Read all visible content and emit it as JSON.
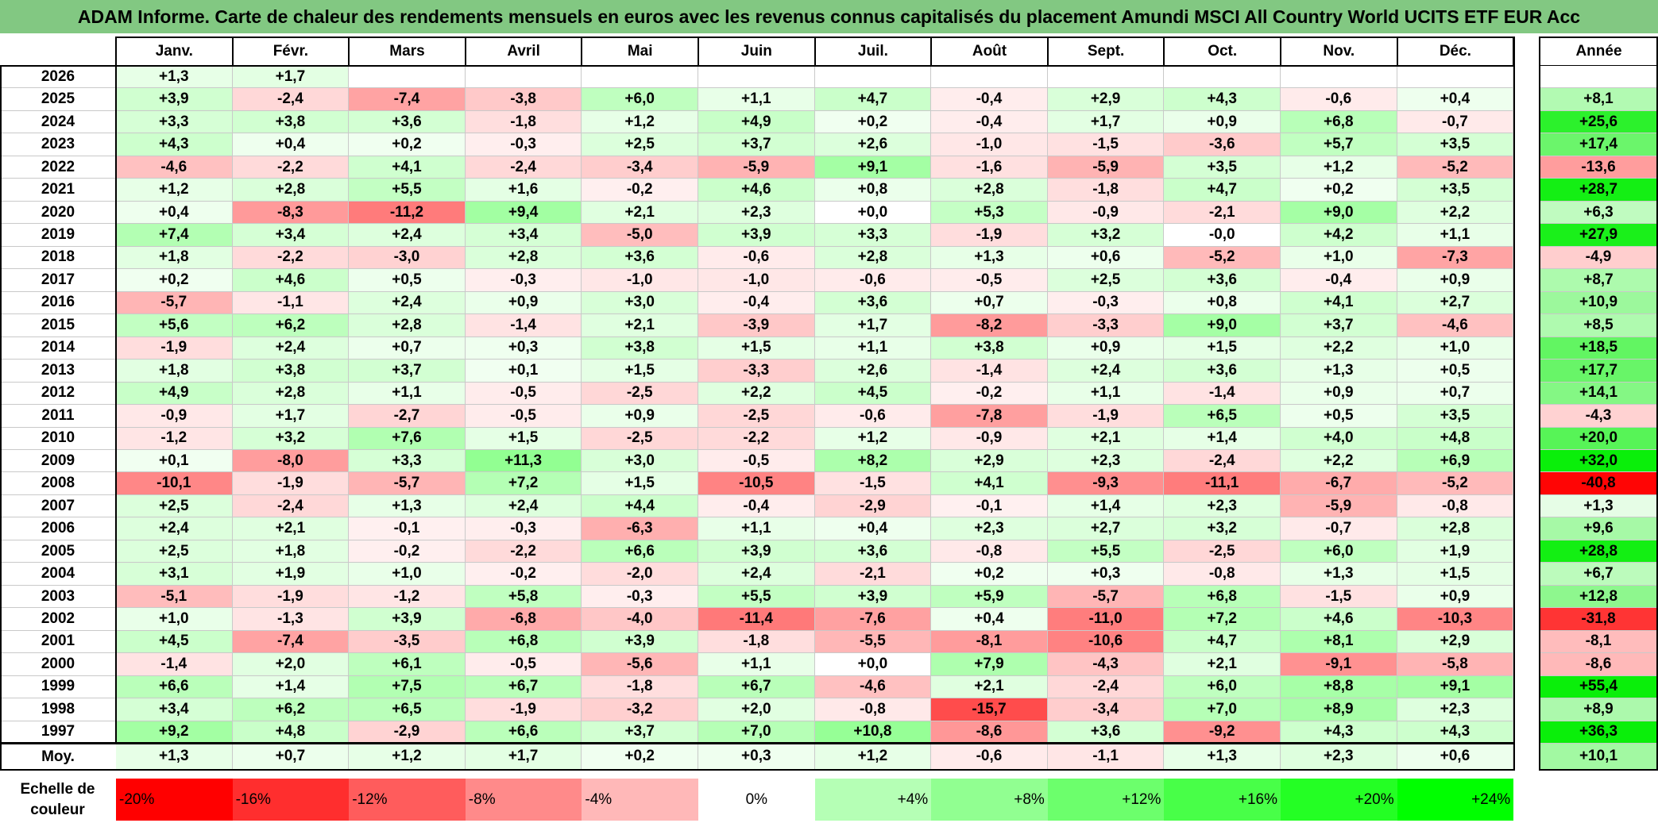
{
  "title": "ADAM Informe. Carte de chaleur des rendements mensuels en euros avec les revenus connus capitalisés du placement Amundi MSCI All Country World UCITS ETF EUR Acc",
  "chart_data": {
    "type": "heatmap",
    "months": [
      "Janv.",
      "Févr.",
      "Mars",
      "Avril",
      "Mai",
      "Juin",
      "Juil.",
      "Août",
      "Sept.",
      "Oct.",
      "Nov.",
      "Déc."
    ],
    "year_header": "Année",
    "avg_label": "Moy.",
    "rows": [
      {
        "year": "2026",
        "values": [
          "+1,3",
          "+1,7",
          "",
          "",
          "",
          "",
          "",
          "",
          "",
          "",
          "",
          ""
        ],
        "annual": ""
      },
      {
        "year": "2025",
        "values": [
          "+3,9",
          "-2,4",
          "-7,4",
          "-3,8",
          "+6,0",
          "+1,1",
          "+4,7",
          "-0,4",
          "+2,9",
          "+4,3",
          "-0,6",
          "+0,4"
        ],
        "annual": "+8,1"
      },
      {
        "year": "2024",
        "values": [
          "+3,3",
          "+3,8",
          "+3,6",
          "-1,8",
          "+1,2",
          "+4,9",
          "+0,2",
          "-0,4",
          "+1,7",
          "+0,9",
          "+6,8",
          "-0,7"
        ],
        "annual": "+25,6"
      },
      {
        "year": "2023",
        "values": [
          "+4,3",
          "+0,4",
          "+0,2",
          "-0,3",
          "+2,5",
          "+3,7",
          "+2,6",
          "-1,0",
          "-1,5",
          "-3,6",
          "+5,7",
          "+3,5"
        ],
        "annual": "+17,4"
      },
      {
        "year": "2022",
        "values": [
          "-4,6",
          "-2,2",
          "+4,1",
          "-2,4",
          "-3,4",
          "-5,9",
          "+9,1",
          "-1,6",
          "-5,9",
          "+3,5",
          "+1,2",
          "-5,2"
        ],
        "annual": "-13,6"
      },
      {
        "year": "2021",
        "values": [
          "+1,2",
          "+2,8",
          "+5,5",
          "+1,6",
          "-0,2",
          "+4,6",
          "+0,8",
          "+2,8",
          "-1,8",
          "+4,7",
          "+0,2",
          "+3,5"
        ],
        "annual": "+28,7"
      },
      {
        "year": "2020",
        "values": [
          "+0,4",
          "-8,3",
          "-11,2",
          "+9,4",
          "+2,1",
          "+2,3",
          "+0,0",
          "+5,3",
          "-0,9",
          "-2,1",
          "+9,0",
          "+2,2"
        ],
        "annual": "+6,3"
      },
      {
        "year": "2019",
        "values": [
          "+7,4",
          "+3,4",
          "+2,4",
          "+3,4",
          "-5,0",
          "+3,9",
          "+3,3",
          "-1,9",
          "+3,2",
          "-0,0",
          "+4,2",
          "+1,1"
        ],
        "annual": "+27,9"
      },
      {
        "year": "2018",
        "values": [
          "+1,8",
          "-2,2",
          "-3,0",
          "+2,8",
          "+3,6",
          "-0,6",
          "+2,8",
          "+1,3",
          "+0,6",
          "-5,2",
          "+1,0",
          "-7,3"
        ],
        "annual": "-4,9"
      },
      {
        "year": "2017",
        "values": [
          "+0,2",
          "+4,6",
          "+0,5",
          "-0,3",
          "-1,0",
          "-1,0",
          "-0,6",
          "-0,5",
          "+2,5",
          "+3,6",
          "-0,4",
          "+0,9"
        ],
        "annual": "+8,7"
      },
      {
        "year": "2016",
        "values": [
          "-5,7",
          "-1,1",
          "+2,4",
          "+0,9",
          "+3,0",
          "-0,4",
          "+3,6",
          "+0,7",
          "-0,3",
          "+0,8",
          "+4,1",
          "+2,7"
        ],
        "annual": "+10,9"
      },
      {
        "year": "2015",
        "values": [
          "+5,6",
          "+6,2",
          "+2,8",
          "-1,4",
          "+2,1",
          "-3,9",
          "+1,7",
          "-8,2",
          "-3,3",
          "+9,0",
          "+3,7",
          "-4,6"
        ],
        "annual": "+8,5"
      },
      {
        "year": "2014",
        "values": [
          "-1,9",
          "+2,4",
          "+0,7",
          "+0,3",
          "+3,8",
          "+1,5",
          "+1,1",
          "+3,8",
          "+0,9",
          "+1,5",
          "+2,2",
          "+1,0"
        ],
        "annual": "+18,5"
      },
      {
        "year": "2013",
        "values": [
          "+1,8",
          "+3,8",
          "+3,7",
          "+0,1",
          "+1,5",
          "-3,3",
          "+2,6",
          "-1,4",
          "+2,4",
          "+3,6",
          "+1,3",
          "+0,5"
        ],
        "annual": "+17,7"
      },
      {
        "year": "2012",
        "values": [
          "+4,9",
          "+2,8",
          "+1,1",
          "-0,5",
          "-2,5",
          "+2,2",
          "+4,5",
          "-0,2",
          "+1,1",
          "-1,4",
          "+0,9",
          "+0,7"
        ],
        "annual": "+14,1"
      },
      {
        "year": "2011",
        "values": [
          "-0,9",
          "+1,7",
          "-2,7",
          "-0,5",
          "+0,9",
          "-2,5",
          "-0,6",
          "-7,8",
          "-1,9",
          "+6,5",
          "+0,5",
          "+3,5"
        ],
        "annual": "-4,3"
      },
      {
        "year": "2010",
        "values": [
          "-1,2",
          "+3,2",
          "+7,6",
          "+1,5",
          "-2,5",
          "-2,2",
          "+1,2",
          "-0,9",
          "+2,1",
          "+1,4",
          "+4,0",
          "+4,8"
        ],
        "annual": "+20,0"
      },
      {
        "year": "2009",
        "values": [
          "+0,1",
          "-8,0",
          "+3,3",
          "+11,3",
          "+3,0",
          "-0,5",
          "+8,2",
          "+2,9",
          "+2,3",
          "-2,4",
          "+2,2",
          "+6,9"
        ],
        "annual": "+32,0"
      },
      {
        "year": "2008",
        "values": [
          "-10,1",
          "-1,9",
          "-5,7",
          "+7,2",
          "+1,5",
          "-10,5",
          "-1,5",
          "+4,1",
          "-9,3",
          "-11,1",
          "-6,7",
          "-5,2"
        ],
        "annual": "-40,8"
      },
      {
        "year": "2007",
        "values": [
          "+2,5",
          "-2,4",
          "+1,3",
          "+2,4",
          "+4,4",
          "-0,4",
          "-2,9",
          "-0,1",
          "+1,4",
          "+2,3",
          "-5,9",
          "-0,8"
        ],
        "annual": "+1,3"
      },
      {
        "year": "2006",
        "values": [
          "+2,4",
          "+2,1",
          "-0,1",
          "-0,3",
          "-6,3",
          "+1,1",
          "+0,4",
          "+2,3",
          "+2,7",
          "+3,2",
          "-0,7",
          "+2,8"
        ],
        "annual": "+9,6"
      },
      {
        "year": "2005",
        "values": [
          "+2,5",
          "+1,8",
          "-0,2",
          "-2,2",
          "+6,6",
          "+3,9",
          "+3,6",
          "-0,8",
          "+5,5",
          "-2,5",
          "+6,0",
          "+1,9"
        ],
        "annual": "+28,8"
      },
      {
        "year": "2004",
        "values": [
          "+3,1",
          "+1,9",
          "+1,0",
          "-0,2",
          "-2,0",
          "+2,4",
          "-2,1",
          "+0,2",
          "+0,3",
          "-0,8",
          "+1,3",
          "+1,5"
        ],
        "annual": "+6,7"
      },
      {
        "year": "2003",
        "values": [
          "-5,1",
          "-1,9",
          "-1,2",
          "+5,8",
          "-0,3",
          "+5,5",
          "+3,9",
          "+5,9",
          "-5,7",
          "+6,8",
          "-1,5",
          "+0,9"
        ],
        "annual": "+12,8"
      },
      {
        "year": "2002",
        "values": [
          "+1,0",
          "-1,3",
          "+3,9",
          "-6,8",
          "-4,0",
          "-11,4",
          "-7,6",
          "+0,4",
          "-11,0",
          "+7,2",
          "+4,6",
          "-10,3"
        ],
        "annual": "-31,8"
      },
      {
        "year": "2001",
        "values": [
          "+4,5",
          "-7,4",
          "-3,5",
          "+6,8",
          "+3,9",
          "-1,8",
          "-5,5",
          "-8,1",
          "-10,6",
          "+4,7",
          "+8,1",
          "+2,9"
        ],
        "annual": "-8,1"
      },
      {
        "year": "2000",
        "values": [
          "-1,4",
          "+2,0",
          "+6,1",
          "-0,5",
          "-5,6",
          "+1,1",
          "+0,0",
          "+7,9",
          "-4,3",
          "+2,1",
          "-9,1",
          "-5,8"
        ],
        "annual": "-8,6"
      },
      {
        "year": "1999",
        "values": [
          "+6,6",
          "+1,4",
          "+7,5",
          "+6,7",
          "-1,8",
          "+6,7",
          "-4,6",
          "+2,1",
          "-2,4",
          "+6,0",
          "+8,8",
          "+9,1"
        ],
        "annual": "+55,4"
      },
      {
        "year": "1998",
        "values": [
          "+3,4",
          "+6,2",
          "+6,5",
          "-1,9",
          "-3,2",
          "+2,0",
          "-0,8",
          "-15,7",
          "-3,4",
          "+7,0",
          "+8,9",
          "+2,3"
        ],
        "annual": "+8,9"
      },
      {
        "year": "1997",
        "values": [
          "+9,2",
          "+4,8",
          "-2,9",
          "+6,6",
          "+3,7",
          "+7,0",
          "+10,8",
          "-8,6",
          "+3,6",
          "-9,2",
          "+4,3",
          "+4,3"
        ],
        "annual": "+36,3"
      }
    ],
    "averages": [
      "+1,3",
      "+0,7",
      "+1,2",
      "+1,7",
      "+0,2",
      "+0,3",
      "+1,2",
      "-0,6",
      "-1,1",
      "+1,3",
      "+2,3",
      "+0,6"
    ],
    "average_annual": "+10,1",
    "color_scale": {
      "label": "Echelle de couleur",
      "steps": [
        {
          "text": "-20%",
          "value": -20
        },
        {
          "text": "-16%",
          "value": -16
        },
        {
          "text": "-12%",
          "value": -12
        },
        {
          "text": "-8%",
          "value": -8
        },
        {
          "text": "-4%",
          "value": -4
        },
        {
          "text": "0%",
          "value": 0
        },
        {
          "text": "+4%",
          "value": 4
        },
        {
          "text": "+8%",
          "value": 8
        },
        {
          "text": "+12%",
          "value": 12
        },
        {
          "text": "+16%",
          "value": 16
        },
        {
          "text": "+20%",
          "value": 20
        },
        {
          "text": "+24%",
          "value": 24
        }
      ],
      "negative_color": "#ff0000",
      "positive_color": "#00ff00",
      "neutral_color": "#ffffff"
    }
  }
}
